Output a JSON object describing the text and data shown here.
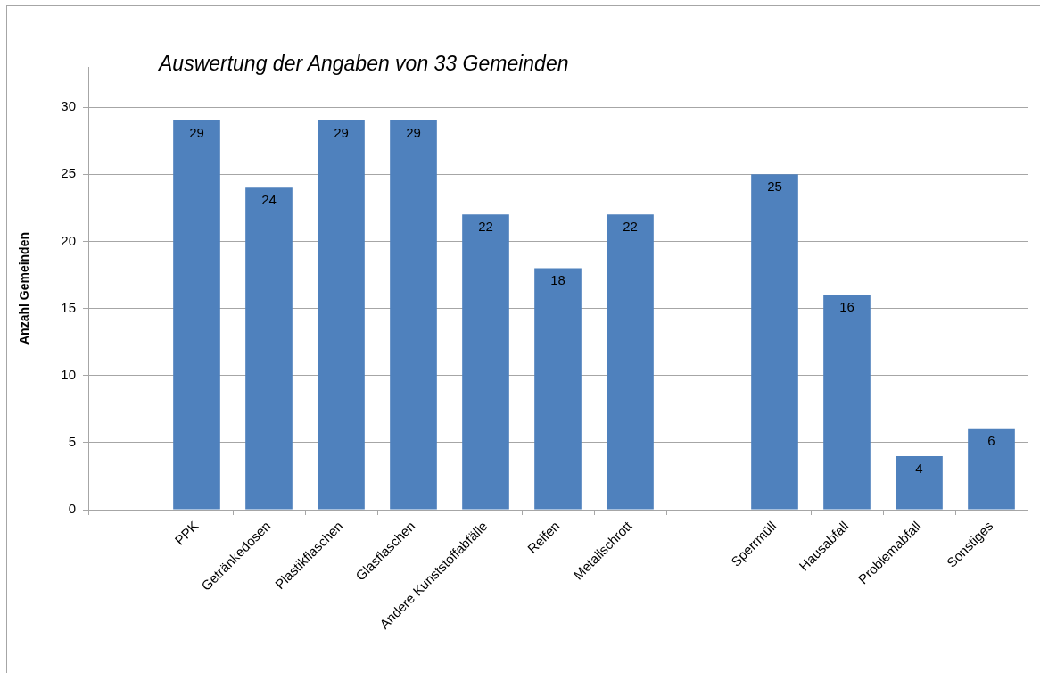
{
  "chart_data": {
    "type": "bar",
    "title": "Auswertung der Angaben von 33 Gemeinden",
    "ylabel": "Anzahl Gemeinden",
    "categories": [
      null,
      "PPK",
      "Getränkedosen",
      "Plastikflaschen",
      "Glasflaschen",
      "Andere Kunststoffabfälle",
      "Reifen",
      "Metallschrott",
      null,
      "Sperrmüll",
      "Hausabfall",
      "Problemabfall",
      "Sonstiges"
    ],
    "values": [
      null,
      29,
      24,
      29,
      29,
      22,
      18,
      22,
      null,
      25,
      16,
      4,
      6
    ],
    "color": "#4f81bd",
    "ylim": [
      0,
      33
    ],
    "yticks": [
      0,
      5,
      10,
      15,
      20,
      25,
      30
    ],
    "grid": "y",
    "data_labels": true
  }
}
